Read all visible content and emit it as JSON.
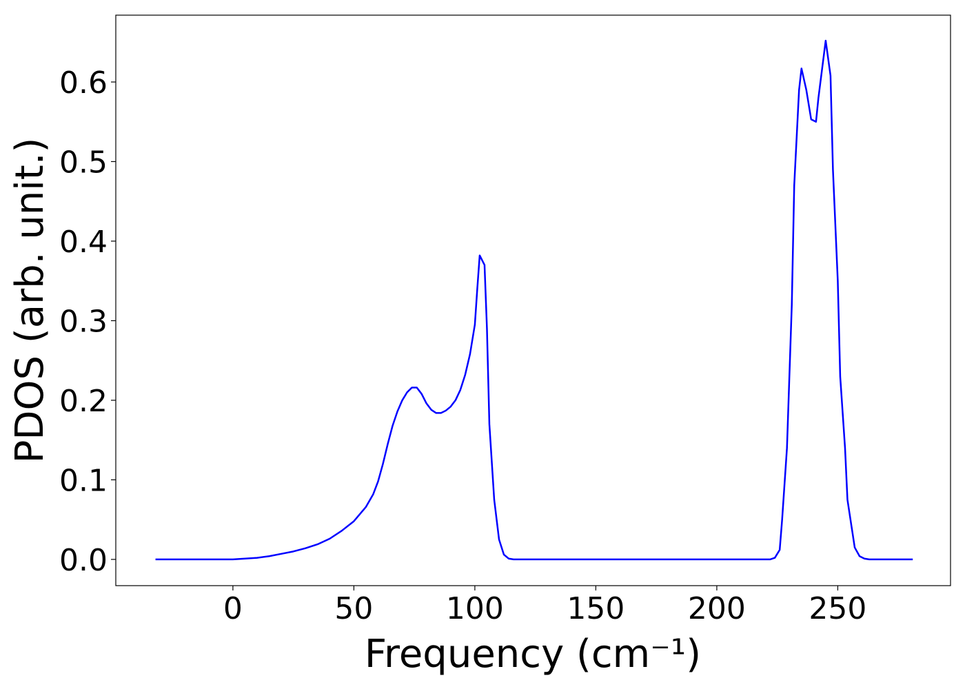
{
  "chart_data": {
    "type": "line",
    "x_label": "Frequency (cm⁻¹)",
    "y_label": "PDOS (arb. unit.)",
    "xlim": [
      -48.4,
      296.6
    ],
    "ylim": [
      -0.033,
      0.684
    ],
    "xticks": [
      0,
      50,
      100,
      150,
      200,
      250
    ],
    "yticks": [
      {
        "value": 0,
        "label": "0.0"
      },
      {
        "value": 0.1,
        "label": "0.1"
      },
      {
        "value": 0.2,
        "label": "0.2"
      },
      {
        "value": 0.3,
        "label": "0.3"
      },
      {
        "value": 0.4,
        "label": "0.4"
      },
      {
        "value": 0.5,
        "label": "0.5"
      },
      {
        "value": 0.6,
        "label": "0.6"
      }
    ],
    "grid": false,
    "x": [
      -32,
      0,
      5,
      10,
      15,
      20,
      25,
      30,
      35,
      40,
      45,
      50,
      55,
      58,
      60,
      62,
      64,
      66,
      68,
      70,
      72,
      74,
      76,
      78,
      80,
      82,
      84,
      86,
      88,
      90,
      92,
      94,
      96,
      98,
      100,
      101,
      102,
      104,
      105,
      106,
      108,
      110,
      112,
      114,
      116,
      222,
      224,
      226,
      227,
      229,
      231,
      232,
      234,
      235,
      237,
      239,
      241,
      242,
      244,
      245,
      247,
      248,
      250,
      251,
      253,
      254,
      256,
      257,
      259,
      261,
      263,
      281
    ],
    "series": [
      {
        "name": "PDOS",
        "color": "#0000ff",
        "values": [
          0,
          0,
          0.001,
          0.002,
          0.004,
          0.007,
          0.01,
          0.014,
          0.019,
          0.026,
          0.036,
          0.048,
          0.066,
          0.082,
          0.098,
          0.12,
          0.145,
          0.168,
          0.186,
          0.2,
          0.21,
          0.216,
          0.216,
          0.208,
          0.196,
          0.188,
          0.184,
          0.184,
          0.187,
          0.192,
          0.2,
          0.213,
          0.232,
          0.258,
          0.295,
          0.34,
          0.382,
          0.37,
          0.29,
          0.17,
          0.075,
          0.025,
          0.006,
          0.001,
          0,
          0,
          0.002,
          0.012,
          0.05,
          0.14,
          0.32,
          0.47,
          0.59,
          0.617,
          0.59,
          0.553,
          0.55,
          0.58,
          0.628,
          0.652,
          0.608,
          0.49,
          0.35,
          0.23,
          0.14,
          0.075,
          0.035,
          0.015,
          0.004,
          0.001,
          0,
          0
        ]
      }
    ]
  }
}
